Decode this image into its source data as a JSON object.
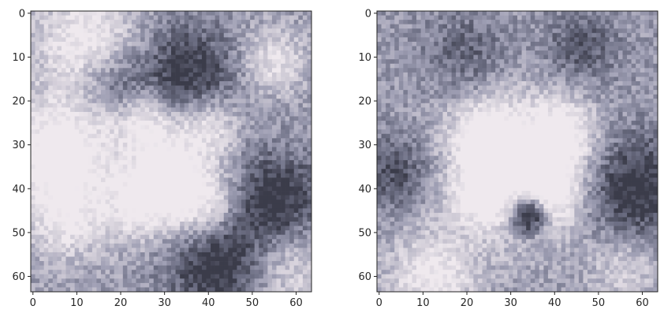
{
  "chart_data": [
    {
      "type": "heatmap",
      "title": "",
      "xlabel": "",
      "ylabel": "",
      "xlim": [
        0,
        64
      ],
      "ylim": [
        64,
        0
      ],
      "rows": 64,
      "cols": 64,
      "colormap": [
        "#3b3c4a",
        "#6b6d82",
        "#9f9fb4",
        "#cfcbd6",
        "#efe9ee"
      ],
      "xticks": [
        "0",
        "10",
        "20",
        "30",
        "40",
        "50",
        "60"
      ],
      "yticks": [
        "0",
        "10",
        "20",
        "30",
        "40",
        "50",
        "60"
      ],
      "blobs": [
        {
          "x": 6,
          "y": 32,
          "r": 9,
          "v": 0.75
        },
        {
          "x": 12,
          "y": 6,
          "r": 8,
          "v": 0.55
        },
        {
          "x": 26,
          "y": 25,
          "r": 5,
          "v": 0.55
        },
        {
          "x": 40,
          "y": 26,
          "r": 5,
          "v": 0.55
        },
        {
          "x": 31,
          "y": 35,
          "r": 5,
          "v": 0.5
        },
        {
          "x": 25,
          "y": 43,
          "r": 6,
          "v": 0.6
        },
        {
          "x": 39,
          "y": 43,
          "r": 6,
          "v": 0.65
        },
        {
          "x": 55,
          "y": 11,
          "r": 5,
          "v": 0.45
        },
        {
          "x": 8,
          "y": 48,
          "r": 6,
          "v": 0.4
        },
        {
          "x": 58,
          "y": 58,
          "r": 7,
          "v": 0.4
        },
        {
          "x": 35,
          "y": 14,
          "r": 8,
          "v": -0.55
        },
        {
          "x": 55,
          "y": 43,
          "r": 8,
          "v": -0.6
        },
        {
          "x": 42,
          "y": 58,
          "r": 8,
          "v": -0.6
        },
        {
          "x": 18,
          "y": 16,
          "r": 5,
          "v": -0.35
        }
      ],
      "base": 0.5,
      "seed": 7
    },
    {
      "type": "heatmap",
      "title": "",
      "xlabel": "",
      "ylabel": "",
      "xlim": [
        0,
        64
      ],
      "ylim": [
        64,
        0
      ],
      "rows": 64,
      "cols": 64,
      "colormap": [
        "#3b3c4a",
        "#6b6d82",
        "#9f9fb4",
        "#cfcbd6",
        "#efe9ee"
      ],
      "xticks": [
        "0",
        "10",
        "20",
        "30",
        "40",
        "50",
        "60"
      ],
      "yticks": [
        "0",
        "10",
        "20",
        "30",
        "40",
        "50",
        "60"
      ],
      "blobs": [
        {
          "x": 32,
          "y": 34,
          "r": 12,
          "v": 0.6
        },
        {
          "x": 24,
          "y": 28,
          "r": 5,
          "v": 0.5
        },
        {
          "x": 42,
          "y": 28,
          "r": 5,
          "v": 0.5
        },
        {
          "x": 24,
          "y": 42,
          "r": 5,
          "v": 0.45
        },
        {
          "x": 40,
          "y": 42,
          "r": 5,
          "v": 0.45
        },
        {
          "x": 34,
          "y": 46,
          "r": 3,
          "v": -1.1
        },
        {
          "x": 58,
          "y": 40,
          "r": 9,
          "v": -0.6
        },
        {
          "x": 4,
          "y": 36,
          "r": 6,
          "v": -0.4
        },
        {
          "x": 12,
          "y": 60,
          "r": 7,
          "v": 0.55
        },
        {
          "x": 46,
          "y": 8,
          "r": 6,
          "v": -0.35
        },
        {
          "x": 20,
          "y": 10,
          "r": 7,
          "v": -0.3
        },
        {
          "x": 56,
          "y": 58,
          "r": 6,
          "v": 0.35
        }
      ],
      "base": 0.48,
      "seed": 19
    }
  ]
}
